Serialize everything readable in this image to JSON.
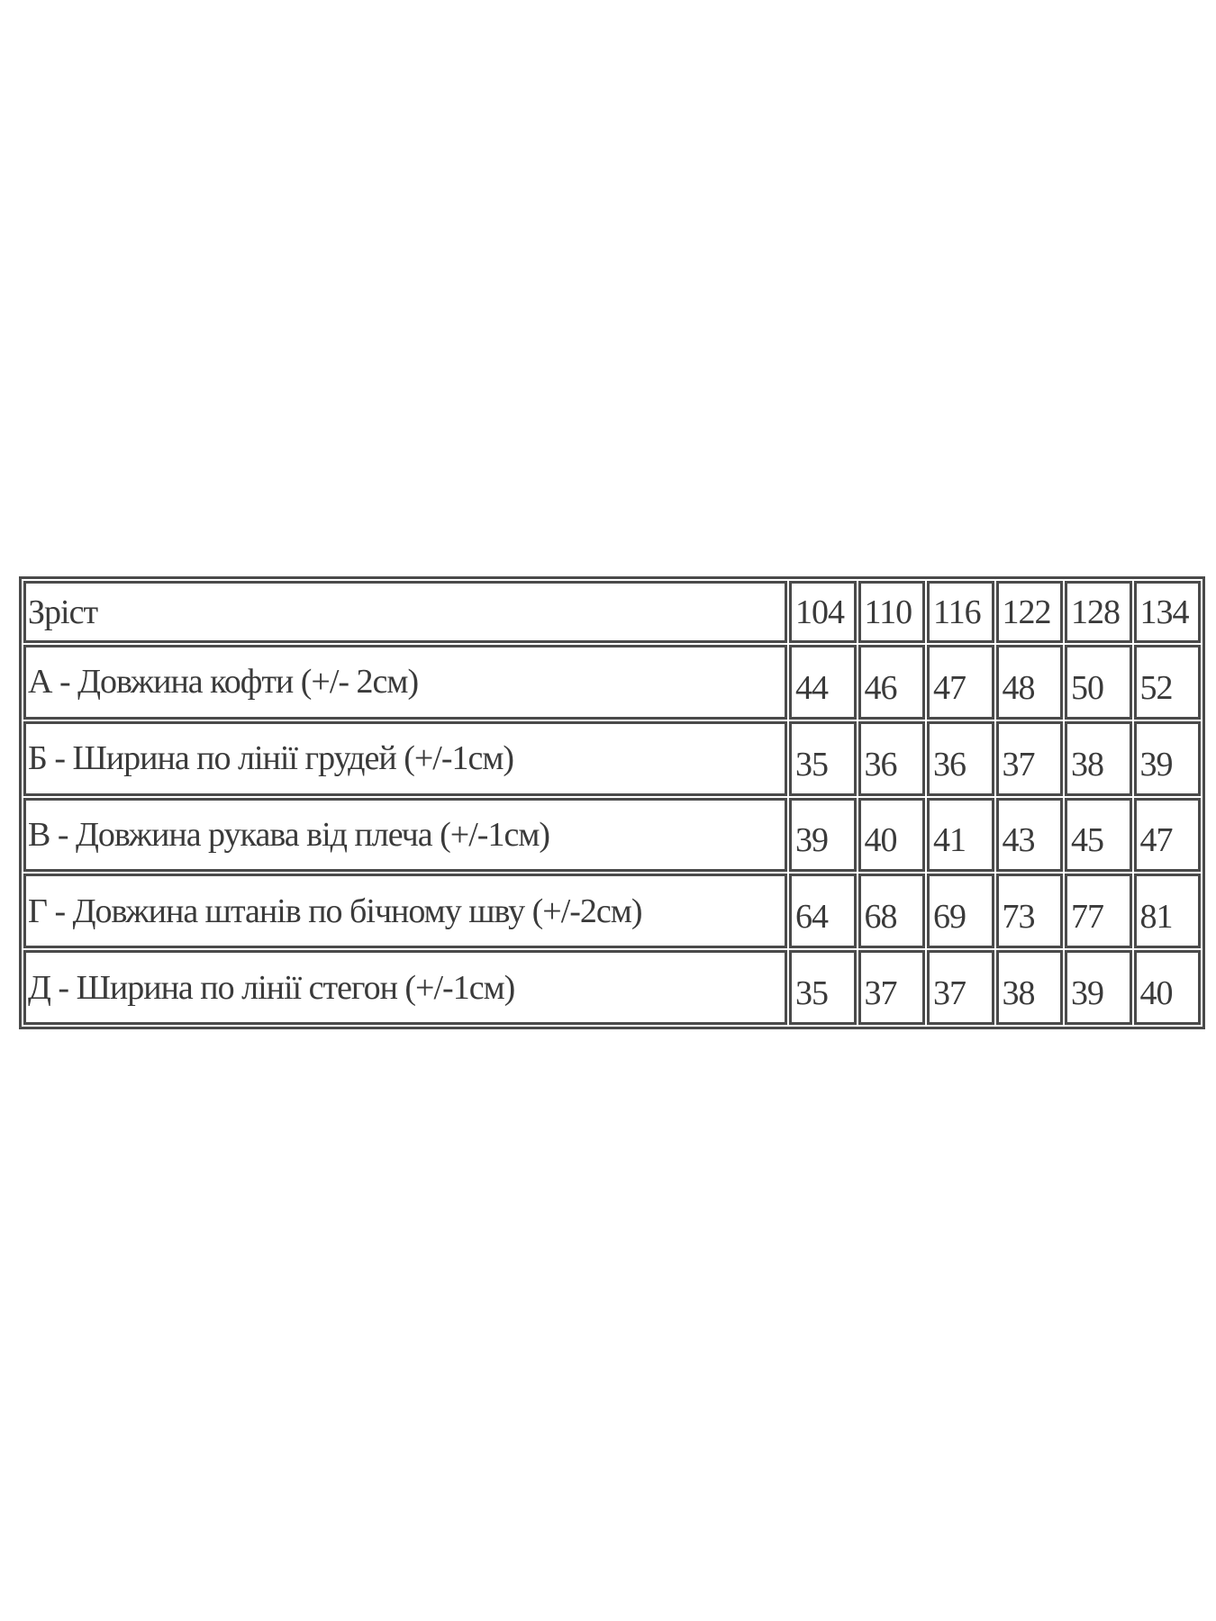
{
  "size_table": {
    "header": {
      "label": "Зріст",
      "sizes": [
        "104",
        "110",
        "116",
        "122",
        "128",
        "134"
      ]
    },
    "rows": [
      {
        "label": "А - Довжина кофти (+/- 2см)",
        "values": [
          "44",
          "46",
          "47",
          "48",
          "50",
          "52"
        ]
      },
      {
        "label": "Б - Ширина по лінії грудей (+/-1см)",
        "values": [
          "35",
          "36",
          "36",
          "37",
          "38",
          "39"
        ]
      },
      {
        "label": "В - Довжина рукава від плеча (+/-1см)",
        "values": [
          "39",
          "40",
          "41",
          "43",
          "45",
          "47"
        ]
      },
      {
        "label": "Г - Довжина штанів по бічному шву (+/-2см)",
        "values": [
          "64",
          "68",
          "69",
          "73",
          "77",
          "81"
        ]
      },
      {
        "label": "Д - Ширина по лінії стегон (+/-1см)",
        "values": [
          "35",
          "37",
          "37",
          "38",
          "39",
          "40"
        ]
      }
    ]
  }
}
